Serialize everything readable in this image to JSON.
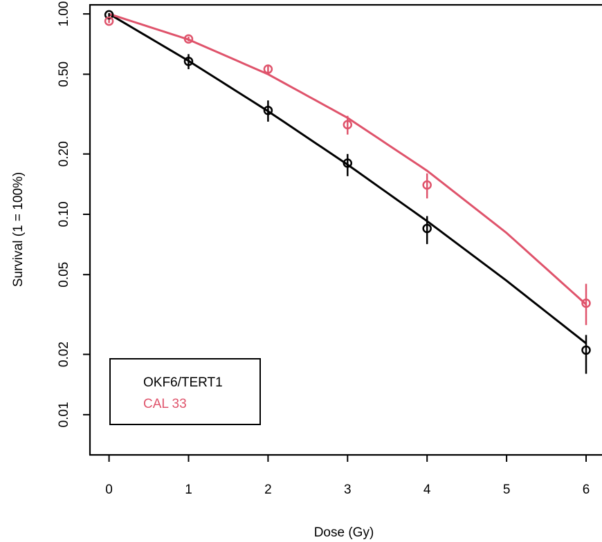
{
  "chart_data": {
    "type": "scatter",
    "xlabel": "Dose (Gy)",
    "ylabel": "Survival (1 = 100%)",
    "x_scale": "linear",
    "y_scale": "log",
    "xlim": [
      -0.24,
      6.2
    ],
    "ylim": [
      0.0063,
      1.11
    ],
    "x_ticks": [
      0,
      1,
      2,
      3,
      4,
      5,
      6
    ],
    "x_tick_labels": [
      "0",
      "1",
      "2",
      "3",
      "4",
      "5",
      "6"
    ],
    "y_ticks": [
      0.01,
      0.02,
      0.05,
      0.1,
      0.2,
      0.5,
      1.0
    ],
    "y_tick_labels": [
      "0.01",
      "0.02",
      "0.05",
      "0.10",
      "0.20",
      "0.50",
      "1.00"
    ],
    "grid": false,
    "legend_position": "bottom-left",
    "series": [
      {
        "name": "OKF6/TERT1",
        "color": "#000000",
        "x": [
          0,
          1,
          2,
          3,
          4,
          6
        ],
        "y": [
          0.99,
          0.58,
          0.33,
          0.18,
          0.085,
          0.021
        ],
        "err_low": [
          0.97,
          0.53,
          0.29,
          0.155,
          0.071,
          0.016
        ],
        "err_high": [
          1.01,
          0.63,
          0.37,
          0.2,
          0.098,
          0.025
        ],
        "fit_y": [
          1.0,
          0.583,
          0.327,
          0.177,
          0.0925,
          0.0466,
          0.0227
        ]
      },
      {
        "name": "CAL 33",
        "color": "#DF536B",
        "x": [
          0,
          1,
          2,
          3,
          4,
          6
        ],
        "y": [
          0.92,
          0.75,
          0.53,
          0.28,
          0.14,
          0.036
        ],
        "err_low": [
          0.9,
          0.73,
          0.51,
          0.25,
          0.12,
          0.028
        ],
        "err_high": [
          0.94,
          0.77,
          0.55,
          0.31,
          0.16,
          0.045
        ],
        "fit_y": [
          1.0,
          0.745,
          0.5,
          0.303,
          0.165,
          0.0807,
          0.0355
        ]
      }
    ]
  }
}
